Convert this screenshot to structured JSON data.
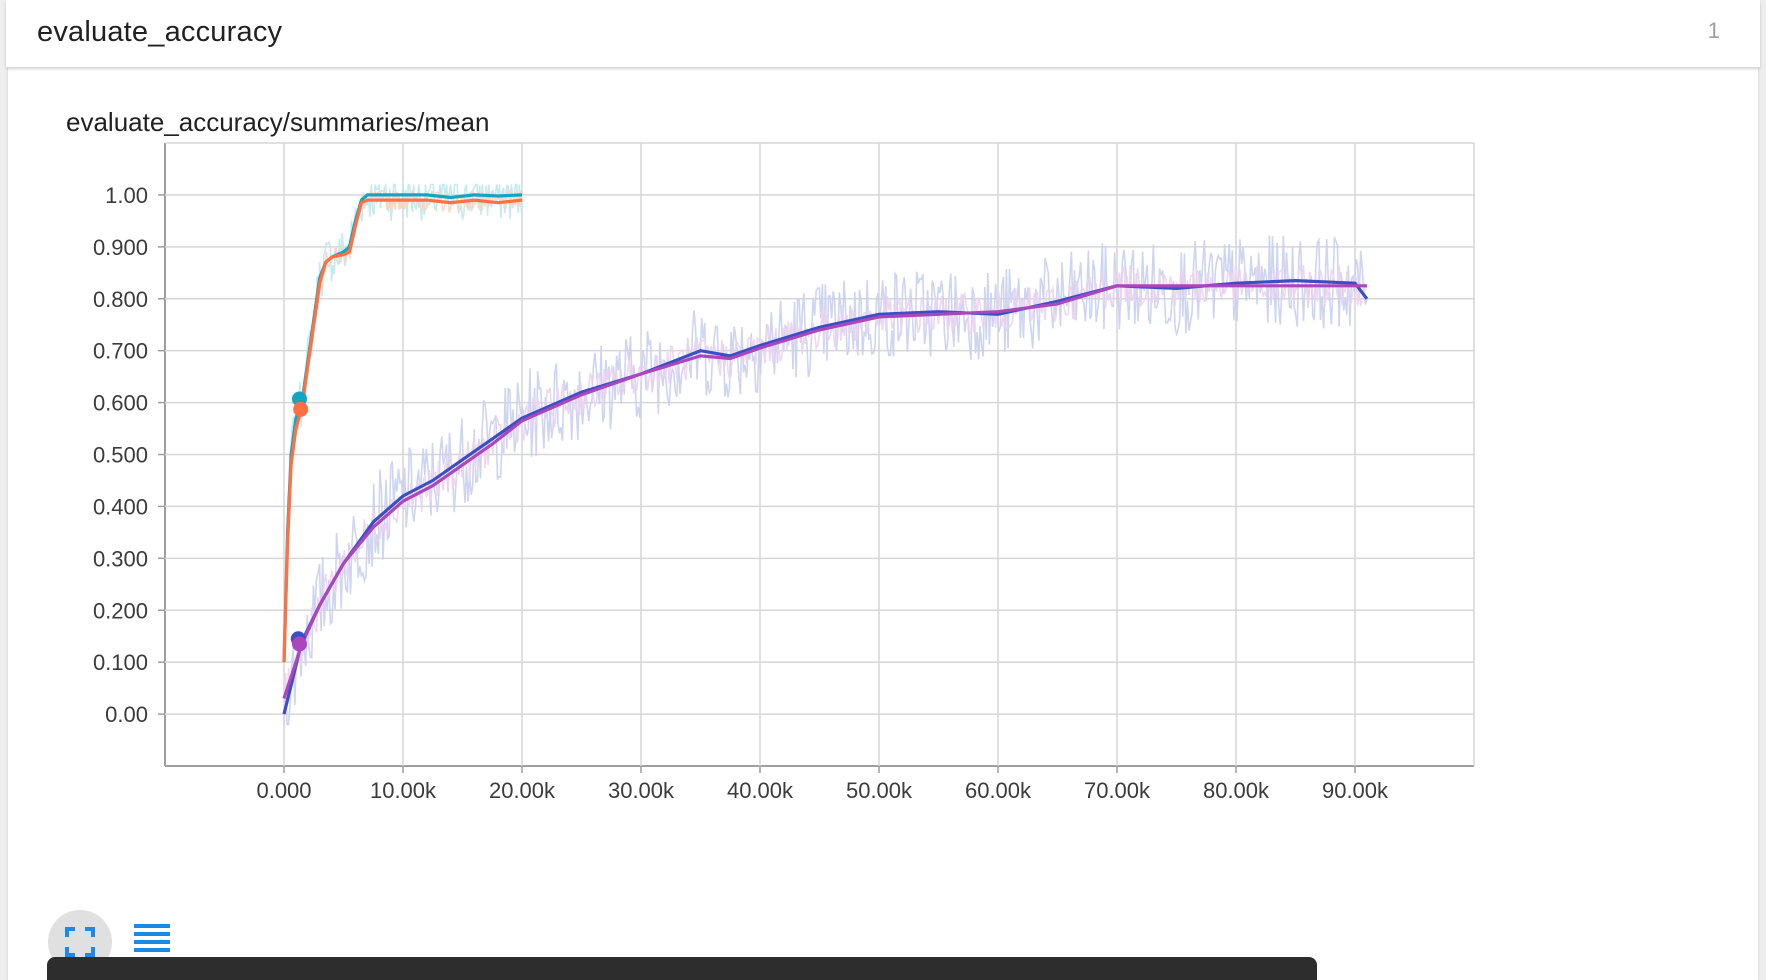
{
  "header": {
    "title": "evaluate_accuracy",
    "count": "1"
  },
  "card": {
    "chart_title": "evaluate_accuracy/summaries/mean"
  },
  "controls": {
    "fullscreen_icon": "fullscreen-icon",
    "legend_icon": "list-icon"
  },
  "colors": {
    "teal": "#12a7c0",
    "orange": "#ff7043",
    "blue": "#3b4fc4",
    "purple": "#ab47bc",
    "teal_raw": "#bfe9ef",
    "orange_raw": "#ffd3c2",
    "blue_raw": "#c9d0f0",
    "purple_raw": "#ecd3f0",
    "icon_blue": "#1e88e5"
  },
  "chart_data": {
    "type": "line",
    "title": "evaluate_accuracy/summaries/mean",
    "xlim": [
      -10000,
      100000
    ],
    "ylim": [
      -0.1,
      1.1
    ],
    "x_ticks": [
      0,
      10000,
      20000,
      30000,
      40000,
      50000,
      60000,
      70000,
      80000,
      90000
    ],
    "x_tick_labels": [
      "0.000",
      "10.00k",
      "20.00k",
      "30.00k",
      "40.00k",
      "50.00k",
      "60.00k",
      "70.00k",
      "80.00k",
      "90.00k"
    ],
    "y_ticks": [
      0,
      0.1,
      0.2,
      0.3,
      0.4,
      0.5,
      0.6,
      0.7,
      0.8,
      0.9,
      1.0
    ],
    "y_tick_labels": [
      "0.00",
      "0.100",
      "0.200",
      "0.300",
      "0.400",
      "0.500",
      "0.600",
      "0.700",
      "0.800",
      "0.900",
      "1.00"
    ],
    "grid": true,
    "series": [
      {
        "color": "#12a7c0",
        "x": [
          0,
          300,
          600,
          1000,
          1500,
          2000,
          2500,
          3000,
          3500,
          4000,
          5000,
          5500,
          6000,
          6500,
          7000,
          8000,
          10000,
          12000,
          14000,
          16000,
          18000,
          20000
        ],
        "y": [
          0.1,
          0.35,
          0.5,
          0.57,
          0.6,
          0.68,
          0.76,
          0.84,
          0.87,
          0.88,
          0.89,
          0.9,
          0.95,
          0.99,
          1.0,
          1.0,
          1.0,
          1.0,
          0.995,
          1.0,
          0.998,
          1.0
        ],
        "marker": {
          "x": 1300,
          "y": 0.607
        }
      },
      {
        "color": "#ff7043",
        "x": [
          0,
          300,
          600,
          1000,
          1500,
          2000,
          2500,
          3000,
          3500,
          4000,
          5000,
          5500,
          6000,
          6500,
          7000,
          8000,
          10000,
          12000,
          14000,
          16000,
          18000,
          20000
        ],
        "y": [
          0.1,
          0.33,
          0.48,
          0.55,
          0.59,
          0.67,
          0.75,
          0.83,
          0.87,
          0.88,
          0.885,
          0.89,
          0.94,
          0.985,
          0.99,
          0.99,
          0.99,
          0.99,
          0.985,
          0.99,
          0.985,
          0.99
        ],
        "marker": {
          "x": 1400,
          "y": 0.587
        }
      },
      {
        "color": "#3b4fc4",
        "x": [
          0,
          1500,
          3000,
          5000,
          7500,
          10000,
          12500,
          15000,
          17500,
          20000,
          25000,
          30000,
          35000,
          37500,
          40000,
          45000,
          50000,
          55000,
          60000,
          65000,
          70000,
          75000,
          80000,
          85000,
          90000,
          91000
        ],
        "y": [
          0.0,
          0.14,
          0.21,
          0.29,
          0.37,
          0.42,
          0.45,
          0.49,
          0.53,
          0.57,
          0.62,
          0.655,
          0.7,
          0.69,
          0.71,
          0.745,
          0.77,
          0.775,
          0.77,
          0.795,
          0.825,
          0.82,
          0.83,
          0.835,
          0.83,
          0.8
        ],
        "marker": {
          "x": 1200,
          "y": 0.145
        }
      },
      {
        "color": "#ab47bc",
        "x": [
          0,
          1500,
          3000,
          5000,
          7500,
          10000,
          12500,
          15000,
          17500,
          20000,
          25000,
          30000,
          35000,
          37500,
          40000,
          45000,
          50000,
          55000,
          60000,
          65000,
          70000,
          75000,
          80000,
          85000,
          90000,
          91000
        ],
        "y": [
          0.03,
          0.135,
          0.21,
          0.29,
          0.36,
          0.41,
          0.44,
          0.48,
          0.52,
          0.565,
          0.615,
          0.655,
          0.69,
          0.685,
          0.705,
          0.74,
          0.765,
          0.77,
          0.775,
          0.79,
          0.825,
          0.825,
          0.825,
          0.825,
          0.825,
          0.825
        ],
        "marker": {
          "x": 1300,
          "y": 0.135
        }
      }
    ]
  }
}
